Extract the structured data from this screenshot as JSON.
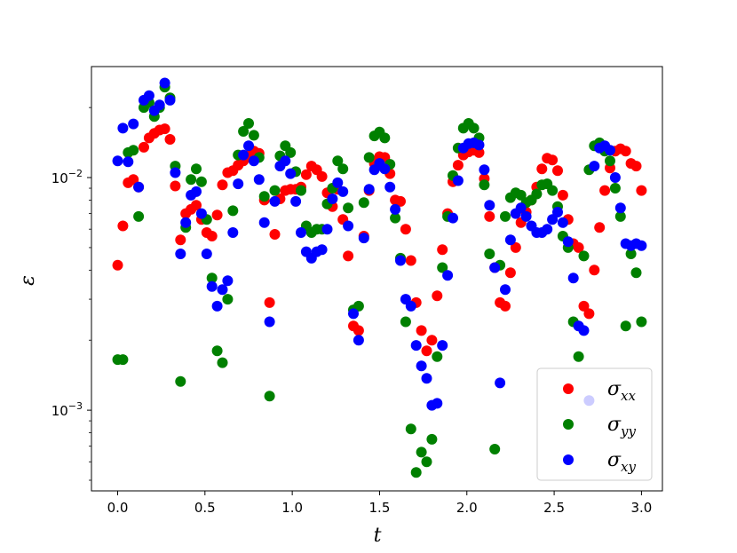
{
  "chart_data": {
    "type": "scatter",
    "xlabel": "t",
    "ylabel": "ε",
    "xlim": [
      -0.15,
      3.12
    ],
    "ylim": [
      0.00045,
      0.03
    ],
    "yscale": "log",
    "xticks": [
      0.0,
      0.5,
      1.0,
      1.5,
      2.0,
      2.5,
      3.0
    ],
    "xtick_labels": [
      "0.0",
      "0.5",
      "1.0",
      "1.5",
      "2.0",
      "2.5",
      "3.0"
    ],
    "ytick_labels": [
      {
        "value": 0.01,
        "base": "10",
        "exp": "−2"
      },
      {
        "value": 0.001,
        "base": "10",
        "exp": "−3"
      }
    ],
    "legend_position": "lower-right",
    "grid": false,
    "series": [
      {
        "name": "σ",
        "sub": "xx",
        "color": "#ff0000",
        "x": [
          0.0,
          0.03,
          0.06,
          0.09,
          0.12,
          0.15,
          0.18,
          0.21,
          0.24,
          0.27,
          0.3,
          0.33,
          0.36,
          0.39,
          0.42,
          0.45,
          0.48,
          0.51,
          0.54,
          0.57,
          0.6,
          0.63,
          0.66,
          0.69,
          0.72,
          0.75,
          0.78,
          0.81,
          0.84,
          0.87,
          0.9,
          0.93,
          0.96,
          0.99,
          1.02,
          1.05,
          1.08,
          1.11,
          1.14,
          1.17,
          1.2,
          1.23,
          1.26,
          1.29,
          1.32,
          1.35,
          1.38,
          1.41,
          1.44,
          1.47,
          1.5,
          1.53,
          1.56,
          1.59,
          1.62,
          1.65,
          1.68,
          1.71,
          1.74,
          1.77,
          1.8,
          1.83,
          1.86,
          1.89,
          1.92,
          1.95,
          1.98,
          2.01,
          2.04,
          2.07,
          2.1,
          2.13,
          2.16,
          2.19,
          2.22,
          2.25,
          2.28,
          2.31,
          2.34,
          2.37,
          2.4,
          2.43,
          2.46,
          2.49,
          2.52,
          2.55,
          2.58,
          2.61,
          2.64,
          2.67,
          2.7,
          2.73,
          2.76,
          2.79,
          2.82,
          2.85,
          2.88,
          2.91,
          2.94,
          2.97,
          3.0
        ],
        "y": [
          0.0042,
          0.0062,
          0.0095,
          0.0098,
          0.0091,
          0.0135,
          0.0148,
          0.0155,
          0.016,
          0.0162,
          0.0146,
          0.0092,
          0.0054,
          0.007,
          0.0073,
          0.0076,
          0.0066,
          0.0058,
          0.0056,
          0.0069,
          0.0093,
          0.0105,
          0.0107,
          0.0113,
          0.0118,
          0.0124,
          0.013,
          0.0127,
          0.008,
          0.0029,
          0.0057,
          0.0081,
          0.0088,
          0.0089,
          0.0089,
          0.0091,
          0.0103,
          0.0112,
          0.0108,
          0.0101,
          0.0086,
          0.0075,
          0.0089,
          0.0066,
          0.0046,
          0.0023,
          0.0022,
          0.0056,
          0.0088,
          0.0115,
          0.0123,
          0.0122,
          0.0104,
          0.008,
          0.0079,
          0.006,
          0.0044,
          0.0029,
          0.0022,
          0.0018,
          0.002,
          0.0031,
          0.0049,
          0.007,
          0.0096,
          0.0113,
          0.0125,
          0.0129,
          0.0131,
          0.0128,
          0.0099,
          0.0068,
          0.0041,
          0.0029,
          0.0028,
          0.0039,
          0.005,
          0.0064,
          0.0071,
          0.008,
          0.0091,
          0.0109,
          0.0121,
          0.0119,
          0.0107,
          0.0084,
          0.0066,
          0.0052,
          0.005,
          0.0028,
          0.0026,
          0.004,
          0.0061,
          0.0088,
          0.011,
          0.013,
          0.0133,
          0.013,
          0.0115,
          0.0112,
          0.0088
        ]
      },
      {
        "name": "σ",
        "sub": "yy",
        "color": "#008000",
        "x": [
          0.0,
          0.03,
          0.06,
          0.09,
          0.12,
          0.15,
          0.18,
          0.21,
          0.24,
          0.27,
          0.3,
          0.33,
          0.36,
          0.39,
          0.42,
          0.45,
          0.48,
          0.51,
          0.54,
          0.57,
          0.6,
          0.63,
          0.66,
          0.69,
          0.72,
          0.75,
          0.78,
          0.81,
          0.84,
          0.87,
          0.9,
          0.93,
          0.96,
          0.99,
          1.02,
          1.05,
          1.08,
          1.11,
          1.14,
          1.17,
          1.2,
          1.23,
          1.26,
          1.29,
          1.32,
          1.35,
          1.38,
          1.41,
          1.44,
          1.47,
          1.5,
          1.53,
          1.56,
          1.59,
          1.62,
          1.65,
          1.68,
          1.71,
          1.74,
          1.77,
          1.8,
          1.83,
          1.86,
          1.89,
          1.92,
          1.95,
          1.98,
          2.01,
          2.04,
          2.07,
          2.1,
          2.13,
          2.16,
          2.19,
          2.22,
          2.25,
          2.28,
          2.31,
          2.34,
          2.37,
          2.4,
          2.43,
          2.46,
          2.49,
          2.52,
          2.55,
          2.58,
          2.61,
          2.64,
          2.67,
          2.7,
          2.73,
          2.76,
          2.79,
          2.82,
          2.85,
          2.88,
          2.91,
          2.94,
          2.97,
          3.0
        ],
        "y": [
          0.00165,
          0.00165,
          0.0128,
          0.0131,
          0.0068,
          0.02,
          0.021,
          0.0183,
          0.02,
          0.0245,
          0.022,
          0.0112,
          0.00133,
          0.0061,
          0.0098,
          0.0109,
          0.0096,
          0.0066,
          0.0037,
          0.0018,
          0.0016,
          0.003,
          0.0072,
          0.0125,
          0.0158,
          0.0171,
          0.0152,
          0.0122,
          0.0083,
          0.00115,
          0.0088,
          0.0124,
          0.0137,
          0.0128,
          0.0106,
          0.0088,
          0.0062,
          0.0058,
          0.006,
          0.006,
          0.0077,
          0.009,
          0.0118,
          0.0109,
          0.0074,
          0.0027,
          0.0028,
          0.0078,
          0.0122,
          0.0151,
          0.0157,
          0.0148,
          0.0114,
          0.0067,
          0.0045,
          0.0024,
          0.00083,
          0.00054,
          0.00066,
          0.0006,
          0.00075,
          0.0017,
          0.0041,
          0.0068,
          0.0102,
          0.0134,
          0.0163,
          0.0171,
          0.0163,
          0.0148,
          0.0093,
          0.0047,
          0.00068,
          0.0042,
          0.0068,
          0.0082,
          0.0086,
          0.0084,
          0.0078,
          0.008,
          0.0085,
          0.0093,
          0.0094,
          0.0088,
          0.0075,
          0.0056,
          0.005,
          0.0024,
          0.0017,
          0.0046,
          0.0108,
          0.0137,
          0.0141,
          0.013,
          0.0118,
          0.009,
          0.0068,
          0.0023,
          0.0047,
          0.0039,
          0.0024
        ]
      },
      {
        "name": "σ",
        "sub": "xy",
        "color": "#0000ff",
        "x": [
          0.0,
          0.03,
          0.06,
          0.09,
          0.12,
          0.15,
          0.18,
          0.21,
          0.24,
          0.27,
          0.3,
          0.33,
          0.36,
          0.39,
          0.42,
          0.45,
          0.48,
          0.51,
          0.54,
          0.57,
          0.6,
          0.63,
          0.66,
          0.69,
          0.72,
          0.75,
          0.78,
          0.81,
          0.84,
          0.87,
          0.9,
          0.93,
          0.96,
          0.99,
          1.02,
          1.05,
          1.08,
          1.11,
          1.14,
          1.17,
          1.2,
          1.23,
          1.26,
          1.29,
          1.32,
          1.35,
          1.38,
          1.41,
          1.44,
          1.47,
          1.5,
          1.53,
          1.56,
          1.59,
          1.62,
          1.65,
          1.68,
          1.71,
          1.74,
          1.77,
          1.8,
          1.83,
          1.86,
          1.89,
          1.92,
          1.95,
          1.98,
          2.01,
          2.04,
          2.07,
          2.1,
          2.13,
          2.16,
          2.19,
          2.22,
          2.25,
          2.28,
          2.31,
          2.34,
          2.37,
          2.4,
          2.43,
          2.46,
          2.49,
          2.52,
          2.55,
          2.58,
          2.61,
          2.64,
          2.67,
          2.7,
          2.73,
          2.76,
          2.79,
          2.82,
          2.85,
          2.88,
          2.91,
          2.94,
          2.97,
          3.0
        ],
        "y": [
          0.0118,
          0.0163,
          0.0117,
          0.017,
          0.0091,
          0.0215,
          0.0225,
          0.0194,
          0.0205,
          0.0255,
          0.0215,
          0.0105,
          0.0047,
          0.0064,
          0.0084,
          0.0087,
          0.007,
          0.0047,
          0.0034,
          0.0028,
          0.0033,
          0.0036,
          0.0058,
          0.0094,
          0.0125,
          0.0137,
          0.0118,
          0.0098,
          0.0064,
          0.0024,
          0.0079,
          0.0112,
          0.0118,
          0.0104,
          0.0079,
          0.0058,
          0.0048,
          0.0045,
          0.0048,
          0.0049,
          0.006,
          0.0081,
          0.0095,
          0.0087,
          0.0062,
          0.0026,
          0.002,
          0.0055,
          0.0089,
          0.0108,
          0.0115,
          0.0109,
          0.0091,
          0.0073,
          0.0044,
          0.003,
          0.0028,
          0.0019,
          0.00155,
          0.00137,
          0.00105,
          0.00107,
          0.0019,
          0.0038,
          0.0067,
          0.0097,
          0.0134,
          0.014,
          0.0141,
          0.0138,
          0.0108,
          0.0076,
          0.0041,
          0.00131,
          0.0033,
          0.0054,
          0.007,
          0.0074,
          0.0068,
          0.0062,
          0.0058,
          0.0058,
          0.006,
          0.0066,
          0.0071,
          0.0064,
          0.0053,
          0.0037,
          0.0023,
          0.0022,
          0.0011,
          0.0112,
          0.0134,
          0.0137,
          0.0131,
          0.01,
          0.0074,
          0.0052,
          0.0051,
          0.0052,
          0.0051
        ]
      }
    ]
  }
}
